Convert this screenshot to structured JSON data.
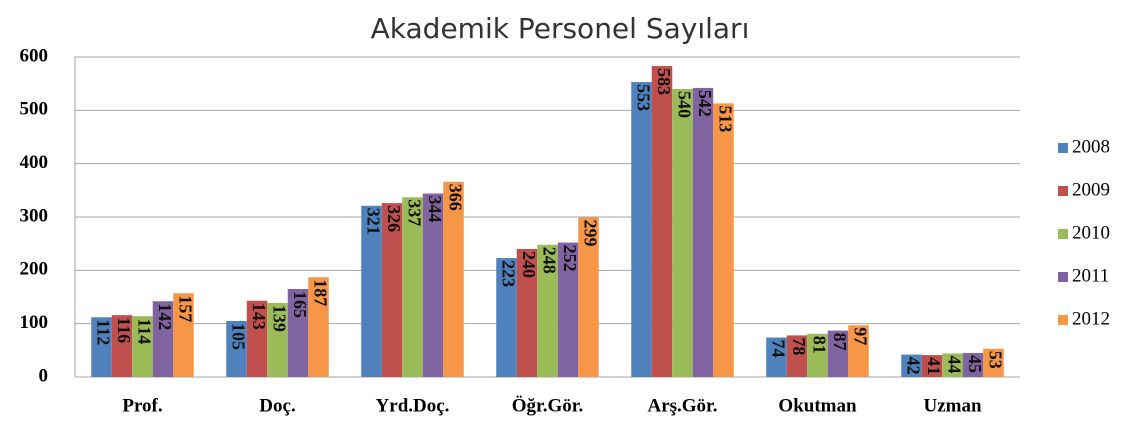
{
  "chart_data": {
    "type": "bar",
    "title": "Akademik Personel Sayıları",
    "categories": [
      "Prof.",
      "Doç.",
      "Yrd.Doç.",
      "Öğr.Gör.",
      "Arş.Gör.",
      "Okutman",
      "Uzman"
    ],
    "series": [
      {
        "name": "2008",
        "color": "#4f81bd",
        "values": [
          112,
          105,
          321,
          223,
          553,
          74,
          42
        ]
      },
      {
        "name": "2009",
        "color": "#c0504d",
        "values": [
          116,
          143,
          326,
          240,
          583,
          78,
          41
        ]
      },
      {
        "name": "2010",
        "color": "#9bbb59",
        "values": [
          114,
          139,
          337,
          248,
          540,
          81,
          44
        ]
      },
      {
        "name": "2011",
        "color": "#8064a2",
        "values": [
          142,
          165,
          344,
          252,
          542,
          87,
          45
        ]
      },
      {
        "name": "2012",
        "color": "#f79646",
        "values": [
          157,
          187,
          366,
          299,
          513,
          97,
          53
        ]
      }
    ],
    "ylim": [
      0,
      600
    ],
    "yticks": [
      0,
      100,
      200,
      300,
      400,
      500,
      600
    ],
    "grid": true,
    "legend": "right"
  }
}
